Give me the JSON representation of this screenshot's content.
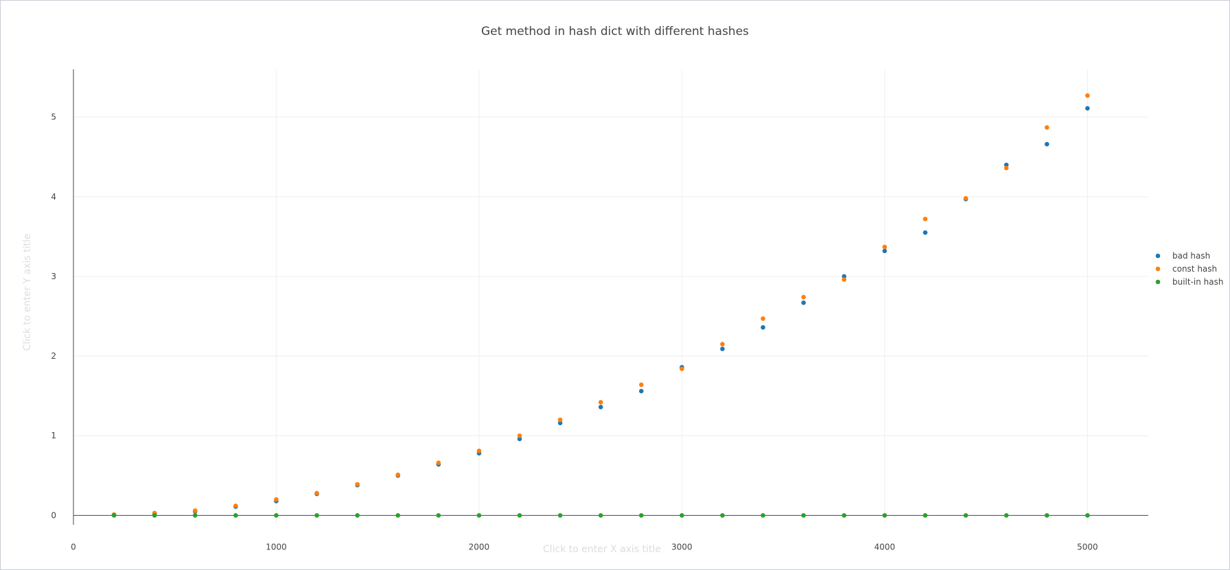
{
  "chart_data": {
    "type": "scatter",
    "title": "Get method in hash dict with different hashes",
    "xlabel": "Click to enter X axis title",
    "ylabel": "Click to enter Y axis title",
    "xlim": [
      0,
      5300
    ],
    "ylim": [
      -0.1,
      5.6
    ],
    "xticks": [
      0,
      1000,
      2000,
      3000,
      4000,
      5000
    ],
    "yticks": [
      0,
      1,
      2,
      3,
      4,
      5
    ],
    "grid": true,
    "legend_position": "right",
    "x": [
      200,
      400,
      600,
      800,
      1000,
      1200,
      1400,
      1600,
      1800,
      2000,
      2200,
      2400,
      2600,
      2800,
      3000,
      3200,
      3400,
      3600,
      3800,
      4000,
      4200,
      4400,
      4600,
      4800,
      5000
    ],
    "series": [
      {
        "name": "bad hash",
        "color": "#1f77b4",
        "values": [
          0.01,
          0.02,
          0.05,
          0.11,
          0.18,
          0.27,
          0.38,
          0.5,
          0.64,
          0.78,
          0.96,
          1.16,
          1.36,
          1.56,
          1.86,
          2.09,
          2.36,
          2.67,
          3.0,
          3.32,
          3.55,
          3.97,
          4.4,
          4.66,
          5.11
        ]
      },
      {
        "name": "const hash",
        "color": "#ff7f0e",
        "values": [
          0.01,
          0.03,
          0.06,
          0.12,
          0.2,
          0.28,
          0.39,
          0.51,
          0.66,
          0.81,
          1.0,
          1.2,
          1.42,
          1.64,
          1.84,
          2.15,
          2.47,
          2.74,
          2.96,
          3.37,
          3.72,
          3.98,
          4.36,
          4.87,
          5.27
        ]
      },
      {
        "name": "built-in hash",
        "color": "#2ca02c",
        "values": [
          0.0,
          0.0,
          0.0,
          0.0,
          0.0,
          0.0,
          0.0,
          0.0,
          0.0,
          0.0,
          0.0,
          0.0,
          0.0,
          0.0,
          0.0,
          0.0,
          0.0,
          0.0,
          0.0,
          0.0,
          0.0,
          0.0,
          0.0,
          0.0,
          0.0
        ]
      }
    ]
  }
}
